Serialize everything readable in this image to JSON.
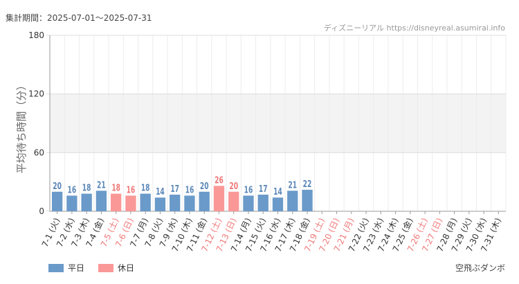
{
  "header": {
    "period_label": "集計期間：2025-07-01〜2025-07-31",
    "source_label": "ディズニーリアル https://disneyreal.asumirai.info"
  },
  "footer": {
    "app_name": "空飛ぶダンボ"
  },
  "colors": {
    "weekday": "#6a9ac9",
    "holiday": "#fa9898",
    "weekday_text": "#5b87b8",
    "holiday_text": "#f07878",
    "band": "#f3f3f3",
    "grid": "#dddddd"
  },
  "chart_data": {
    "type": "bar",
    "title": "",
    "ylabel": "平均待ち時間（分）",
    "ylim": [
      0,
      180
    ],
    "yticks": [
      0,
      60,
      120,
      180
    ],
    "shaded_band": [
      60,
      120
    ],
    "grid": true,
    "legend_position": "bottom-left",
    "legend": [
      {
        "name": "平日",
        "kind": "weekday"
      },
      {
        "name": "休日",
        "kind": "holiday"
      }
    ],
    "categories": [
      "7-1 (火)",
      "7-2 (水)",
      "7-3 (木)",
      "7-4 (金)",
      "7-5 (土)",
      "7-6 (日)",
      "7-7 (月)",
      "7-8 (火)",
      "7-9 (水)",
      "7-10 (木)",
      "7-11 (金)",
      "7-12 (土)",
      "7-13 (日)",
      "7-14 (月)",
      "7-15 (火)",
      "7-16 (水)",
      "7-17 (木)",
      "7-18 (金)",
      "7-19 (土)",
      "7-20 (日)",
      "7-21 (月)",
      "7-22 (火)",
      "7-23 (水)",
      "7-24 (木)",
      "7-25 (金)",
      "7-26 (土)",
      "7-27 (日)",
      "7-28 (月)",
      "7-29 (火)",
      "7-30 (水)",
      "7-31 (木)"
    ],
    "values": [
      20,
      16,
      18,
      21,
      18,
      16,
      18,
      14,
      17,
      16,
      20,
      26,
      20,
      16,
      17,
      14,
      21,
      22,
      null,
      null,
      null,
      null,
      null,
      null,
      null,
      null,
      null,
      null,
      null,
      null,
      null
    ],
    "holiday": [
      false,
      false,
      false,
      false,
      true,
      true,
      false,
      false,
      false,
      false,
      false,
      true,
      true,
      false,
      false,
      false,
      false,
      false,
      true,
      true,
      true,
      false,
      false,
      false,
      false,
      true,
      true,
      false,
      false,
      false,
      false
    ]
  }
}
